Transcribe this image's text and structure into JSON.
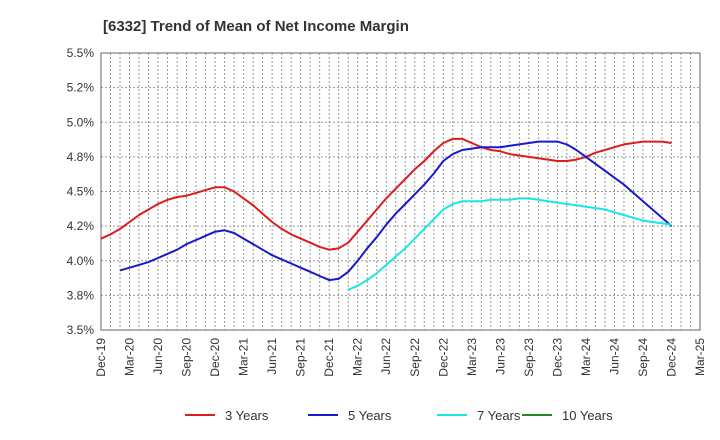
{
  "chart_data": {
    "type": "line",
    "title": "[6332]  Trend of Mean of Net Income Margin",
    "xlabel": "",
    "ylabel": "",
    "x_ticks": [
      "Dec-19",
      "Mar-20",
      "Jun-20",
      "Sep-20",
      "Dec-20",
      "Mar-21",
      "Jun-21",
      "Sep-21",
      "Dec-21",
      "Mar-22",
      "Jun-22",
      "Sep-22",
      "Dec-22",
      "Mar-23",
      "Jun-23",
      "Sep-23",
      "Dec-23",
      "Mar-24",
      "Jun-24",
      "Sep-24",
      "Dec-24",
      "Mar-25"
    ],
    "y_ticks": [
      "3.5%",
      "3.8%",
      "4.0%",
      "4.2%",
      "4.5%",
      "4.8%",
      "5.0%",
      "5.2%",
      "5.5%"
    ],
    "ylim": [
      3.5,
      5.5
    ],
    "grid": true,
    "legend_position": "bottom",
    "series": [
      {
        "name": "3 Years",
        "color": "#dd1c1c",
        "x": [
          "Dec-19",
          "Jan-20",
          "Feb-20",
          "Mar-20",
          "Apr-20",
          "May-20",
          "Jun-20",
          "Jul-20",
          "Aug-20",
          "Sep-20",
          "Oct-20",
          "Nov-20",
          "Dec-20",
          "Jan-21",
          "Feb-21",
          "Mar-21",
          "Apr-21",
          "May-21",
          "Jun-21",
          "Jul-21",
          "Aug-21",
          "Sep-21",
          "Oct-21",
          "Nov-21",
          "Dec-21",
          "Jan-22",
          "Feb-22",
          "Mar-22",
          "Apr-22",
          "May-22",
          "Jun-22",
          "Jul-22",
          "Aug-22",
          "Sep-22",
          "Oct-22",
          "Nov-22",
          "Dec-22",
          "Jan-23",
          "Feb-23",
          "Mar-23",
          "Apr-23",
          "May-23",
          "Jun-23",
          "Jul-23",
          "Aug-23",
          "Sep-23",
          "Oct-23",
          "Nov-23",
          "Dec-23",
          "Jan-24",
          "Feb-24",
          "Mar-24",
          "Apr-24",
          "May-24",
          "Jun-24",
          "Jul-24",
          "Aug-24",
          "Sep-24",
          "Oct-24",
          "Nov-24",
          "Dec-24"
        ],
        "values": [
          4.16,
          4.19,
          4.23,
          4.28,
          4.33,
          4.37,
          4.41,
          4.44,
          4.46,
          4.47,
          4.49,
          4.51,
          4.53,
          4.53,
          4.5,
          4.45,
          4.4,
          4.34,
          4.28,
          4.23,
          4.19,
          4.16,
          4.13,
          4.1,
          4.08,
          4.09,
          4.13,
          4.21,
          4.29,
          4.37,
          4.45,
          4.52,
          4.59,
          4.66,
          4.72,
          4.79,
          4.85,
          4.88,
          4.88,
          4.85,
          4.82,
          4.8,
          4.79,
          4.77,
          4.76,
          4.75,
          4.74,
          4.73,
          4.72,
          4.72,
          4.73,
          4.75,
          4.78,
          4.8,
          4.82,
          4.84,
          4.85,
          4.86,
          4.86,
          4.86,
          4.85
        ]
      },
      {
        "name": "5 Years",
        "color": "#1a1acd",
        "x": [
          "Feb-20",
          "Mar-20",
          "Apr-20",
          "May-20",
          "Jun-20",
          "Jul-20",
          "Aug-20",
          "Sep-20",
          "Oct-20",
          "Nov-20",
          "Dec-20",
          "Jan-21",
          "Feb-21",
          "Mar-21",
          "Apr-21",
          "May-21",
          "Jun-21",
          "Jul-21",
          "Aug-21",
          "Sep-21",
          "Oct-21",
          "Nov-21",
          "Dec-21",
          "Jan-22",
          "Feb-22",
          "Mar-22",
          "Apr-22",
          "May-22",
          "Jun-22",
          "Jul-22",
          "Aug-22",
          "Sep-22",
          "Oct-22",
          "Nov-22",
          "Dec-22",
          "Jan-23",
          "Feb-23",
          "Mar-23",
          "Apr-23",
          "May-23",
          "Jun-23",
          "Jul-23",
          "Aug-23",
          "Sep-23",
          "Oct-23",
          "Nov-23",
          "Dec-23",
          "Jan-24",
          "Feb-24",
          "Mar-24",
          "Apr-24",
          "May-24",
          "Jun-24",
          "Jul-24",
          "Aug-24",
          "Sep-24",
          "Oct-24",
          "Nov-24",
          "Dec-24"
        ],
        "values": [
          3.93,
          3.95,
          3.97,
          3.99,
          4.02,
          4.05,
          4.08,
          4.12,
          4.15,
          4.18,
          4.21,
          4.22,
          4.2,
          4.16,
          4.12,
          4.08,
          4.04,
          4.01,
          3.98,
          3.95,
          3.92,
          3.89,
          3.86,
          3.87,
          3.92,
          4.0,
          4.09,
          4.17,
          4.26,
          4.34,
          4.41,
          4.48,
          4.55,
          4.63,
          4.72,
          4.77,
          4.8,
          4.81,
          4.82,
          4.82,
          4.82,
          4.83,
          4.84,
          4.85,
          4.86,
          4.86,
          4.86,
          4.84,
          4.8,
          4.75,
          4.7,
          4.65,
          4.6,
          4.55,
          4.49,
          4.43,
          4.37,
          4.31,
          4.25
        ]
      },
      {
        "name": "7 Years",
        "color": "#1ae6e6",
        "x": [
          "Feb-22",
          "Mar-22",
          "Apr-22",
          "May-22",
          "Jun-22",
          "Jul-22",
          "Aug-22",
          "Sep-22",
          "Oct-22",
          "Nov-22",
          "Dec-22",
          "Jan-23",
          "Feb-23",
          "Mar-23",
          "Apr-23",
          "May-23",
          "Jun-23",
          "Jul-23",
          "Aug-23",
          "Sep-23",
          "Oct-23",
          "Nov-23",
          "Dec-23",
          "Jan-24",
          "Feb-24",
          "Mar-24",
          "Apr-24",
          "May-24",
          "Jun-24",
          "Jul-24",
          "Aug-24",
          "Sep-24",
          "Oct-24",
          "Nov-24",
          "Dec-24"
        ],
        "values": [
          3.79,
          3.82,
          3.86,
          3.91,
          3.97,
          4.03,
          4.09,
          4.16,
          4.23,
          4.3,
          4.37,
          4.41,
          4.43,
          4.43,
          4.43,
          4.44,
          4.44,
          4.44,
          4.45,
          4.45,
          4.44,
          4.43,
          4.42,
          4.41,
          4.4,
          4.39,
          4.38,
          4.37,
          4.35,
          4.33,
          4.31,
          4.29,
          4.28,
          4.27,
          4.26
        ]
      },
      {
        "name": "10 Years",
        "color": "#1f8a1f",
        "x": [],
        "values": []
      }
    ]
  }
}
